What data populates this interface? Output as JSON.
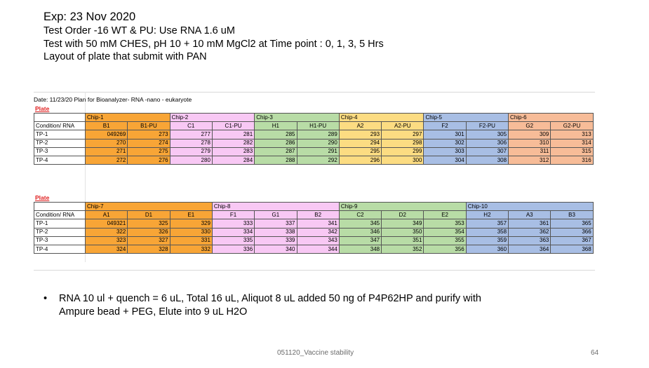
{
  "header": {
    "title": "Exp: 23 Nov 2020",
    "line1": "Test Order -16 WT & PU: Use RNA 1.6 uM",
    "line2": "Test with 50 mM CHES, pH 10 + 10 mM MgCl2 at Time point : 0, 1, 3, 5 Hrs",
    "line3": "Layout of plate that submit with PAN"
  },
  "sheet": {
    "title": "Date: 11/23/20 Plan for Bioanalyzer- RNA -nano - eukaryote",
    "plate1": {
      "label": "Plate 1",
      "chips": [
        "Chip-1",
        "Chip-2",
        "Chip-3",
        "Chip-4",
        "Chip-5",
        "Chip-6"
      ],
      "colors": [
        "#f8a536",
        "#f8c8f4",
        "#b8dca6",
        "#fcdc82",
        "#a8bee4",
        "#f7bc98"
      ],
      "header_label": "Condition/ RNA",
      "columns": [
        "B1",
        "B1-PU",
        "C1",
        "C1-PU",
        "H1",
        "H1-PU",
        "A2",
        "A2-PU",
        "F2",
        "F2-PU",
        "G2",
        "G2-PU"
      ],
      "rows": [
        {
          "label": "TP-1",
          "values": [
            "049269",
            "273",
            "277",
            "281",
            "285",
            "289",
            "293",
            "297",
            "301",
            "305",
            "309",
            "313"
          ]
        },
        {
          "label": "TP-2",
          "values": [
            "270",
            "274",
            "278",
            "282",
            "286",
            "290",
            "294",
            "298",
            "302",
            "306",
            "310",
            "314"
          ]
        },
        {
          "label": "TP-3",
          "values": [
            "271",
            "275",
            "279",
            "283",
            "287",
            "291",
            "295",
            "299",
            "303",
            "307",
            "311",
            "315"
          ]
        },
        {
          "label": "TP-4",
          "values": [
            "272",
            "276",
            "280",
            "284",
            "288",
            "292",
            "296",
            "300",
            "304",
            "308",
            "312",
            "316"
          ]
        }
      ]
    },
    "plate2": {
      "label": "Plate 2",
      "chips": [
        "Chip-7",
        "Chip-8",
        "Chip-9",
        "Chip-10"
      ],
      "colors": [
        "#f8a536",
        "#f8c8f4",
        "#b8dca6",
        "#a8bee4"
      ],
      "header_label": "Condition/ RNA",
      "columns": [
        "A1",
        "D1",
        "E1",
        "F1",
        "G1",
        "B2",
        "C2",
        "D2",
        "E2",
        "H2",
        "A3",
        "B3"
      ],
      "rows": [
        {
          "label": "TP-1",
          "values": [
            "049321",
            "325",
            "329",
            "333",
            "337",
            "341",
            "345",
            "349",
            "353",
            "357",
            "361",
            "365"
          ]
        },
        {
          "label": "TP-2",
          "values": [
            "322",
            "326",
            "330",
            "334",
            "338",
            "342",
            "346",
            "350",
            "354",
            "358",
            "362",
            "366"
          ]
        },
        {
          "label": "TP-3",
          "values": [
            "323",
            "327",
            "331",
            "335",
            "339",
            "343",
            "347",
            "351",
            "355",
            "359",
            "363",
            "367"
          ]
        },
        {
          "label": "TP-4",
          "values": [
            "324",
            "328",
            "332",
            "336",
            "340",
            "344",
            "348",
            "352",
            "356",
            "360",
            "364",
            "368"
          ]
        }
      ]
    }
  },
  "bullet": {
    "symbol": "•",
    "text": "RNA  10 ul + quench = 6 uL, Total 16 uL, Aliquot 8 uL added 50 ng of P4P62HP and purify with Ampure bead + PEG, Elute into 9 uL H2O"
  },
  "footer": {
    "center": "051120_Vaccine stability",
    "page": "64"
  }
}
